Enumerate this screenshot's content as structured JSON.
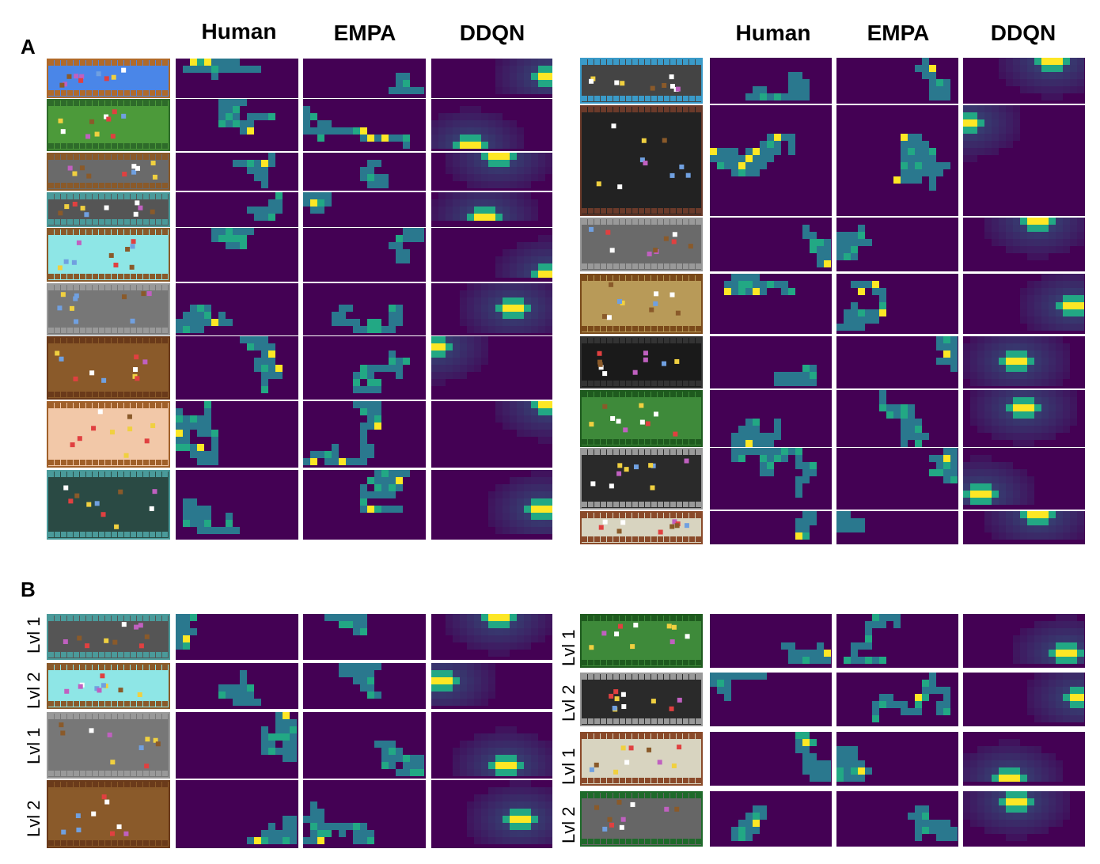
{
  "panels": {
    "a": "A",
    "b": "B"
  },
  "columns": {
    "human": "Human",
    "empa": "EMPA",
    "ddqn": "DDQN"
  },
  "levels": {
    "lvl1": "Lvl 1",
    "lvl2": "Lvl 2"
  },
  "colors": {
    "background": "#440154",
    "trail": "#2a788e",
    "trail_light": "#22a884",
    "hot": "#bddf26",
    "peak": "#fde725"
  }
}
